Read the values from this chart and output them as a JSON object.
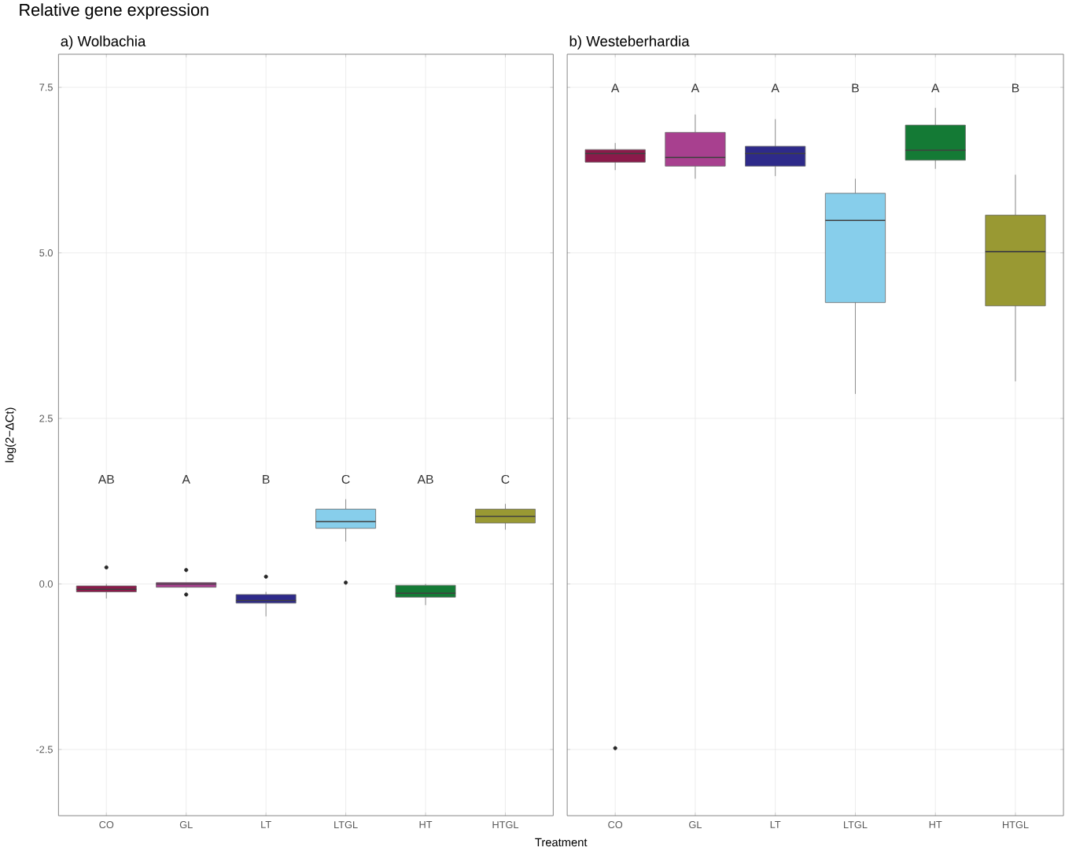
{
  "chart_data": [
    {
      "type": "box",
      "title": "Relative gene expression",
      "subtitle": "a) Wolbachia",
      "xlabel": "Treatment",
      "ylabel": "log(2−ΔCt)",
      "categories": [
        "CO",
        "GL",
        "LT",
        "LTGL",
        "HT",
        "HTGL"
      ],
      "colors": [
        "#8b1a4a",
        "#a8408f",
        "#2e2a8a",
        "#87ceeb",
        "#147a35",
        "#999933"
      ],
      "boxes": [
        {
          "low": -0.22,
          "q1": -0.12,
          "median": -0.08,
          "q3": -0.03,
          "high": 0.0,
          "outliers": [
            0.25
          ]
        },
        {
          "low": -0.05,
          "q1": -0.05,
          "median": 0.0,
          "q3": 0.02,
          "high": 0.02,
          "outliers": [
            0.21,
            -0.16
          ]
        },
        {
          "low": -0.49,
          "q1": -0.29,
          "median": -0.25,
          "q3": -0.16,
          "high": -0.12,
          "outliers": [
            0.11
          ]
        },
        {
          "low": 0.64,
          "q1": 0.84,
          "median": 0.94,
          "q3": 1.13,
          "high": 1.28,
          "outliers": [
            0.02
          ]
        },
        {
          "low": -0.32,
          "q1": -0.2,
          "median": -0.14,
          "q3": -0.02,
          "high": 0.0
        },
        {
          "low": 0.82,
          "q1": 0.92,
          "median": 1.02,
          "q3": 1.13,
          "high": 1.21
        }
      ],
      "ylim": [
        -3.5,
        8.0
      ],
      "yticks": [
        -2.5,
        {
          "value": 0,
          "label": "0.0"
        },
        2.5,
        {
          "value": 5,
          "label": "5.0"
        },
        7.5
      ],
      "grid": true,
      "annotations": [
        "AB",
        "A",
        "B",
        "C",
        "AB",
        "C"
      ]
    },
    {
      "type": "box",
      "title": "b) Westeberhardia",
      "categories": [
        "CO",
        "GL",
        "LT",
        "LTGL",
        "HT",
        "HTGL"
      ],
      "colors": [
        "#8b1a4a",
        "#a8408f",
        "#2e2a8a",
        "#87ceeb",
        "#147a35",
        "#999933"
      ],
      "boxes": [
        {
          "low": 6.25,
          "q1": 6.37,
          "median": 6.5,
          "q3": 6.56,
          "high": 6.66,
          "outliers": [
            -2.48
          ]
        },
        {
          "low": 6.12,
          "q1": 6.31,
          "median": 6.44,
          "q3": 6.82,
          "high": 7.09
        },
        {
          "low": 6.16,
          "q1": 6.31,
          "median": 6.5,
          "q3": 6.61,
          "high": 7.02
        },
        {
          "low": 2.87,
          "q1": 4.25,
          "median": 5.49,
          "q3": 5.9,
          "high": 6.12
        },
        {
          "low": 6.27,
          "q1": 6.4,
          "median": 6.55,
          "q3": 6.93,
          "high": 7.19
        },
        {
          "low": 3.06,
          "q1": 4.2,
          "median": 5.02,
          "q3": 5.57,
          "high": 6.18
        }
      ],
      "ylim": [
        -3.5,
        8.0
      ],
      "yticks": [
        -2.5,
        0,
        2.5,
        5,
        7.5
      ],
      "tick_labels": "x",
      "grid": true,
      "annotations": [
        "A",
        "A",
        "A",
        "B",
        "A",
        "B"
      ]
    }
  ]
}
